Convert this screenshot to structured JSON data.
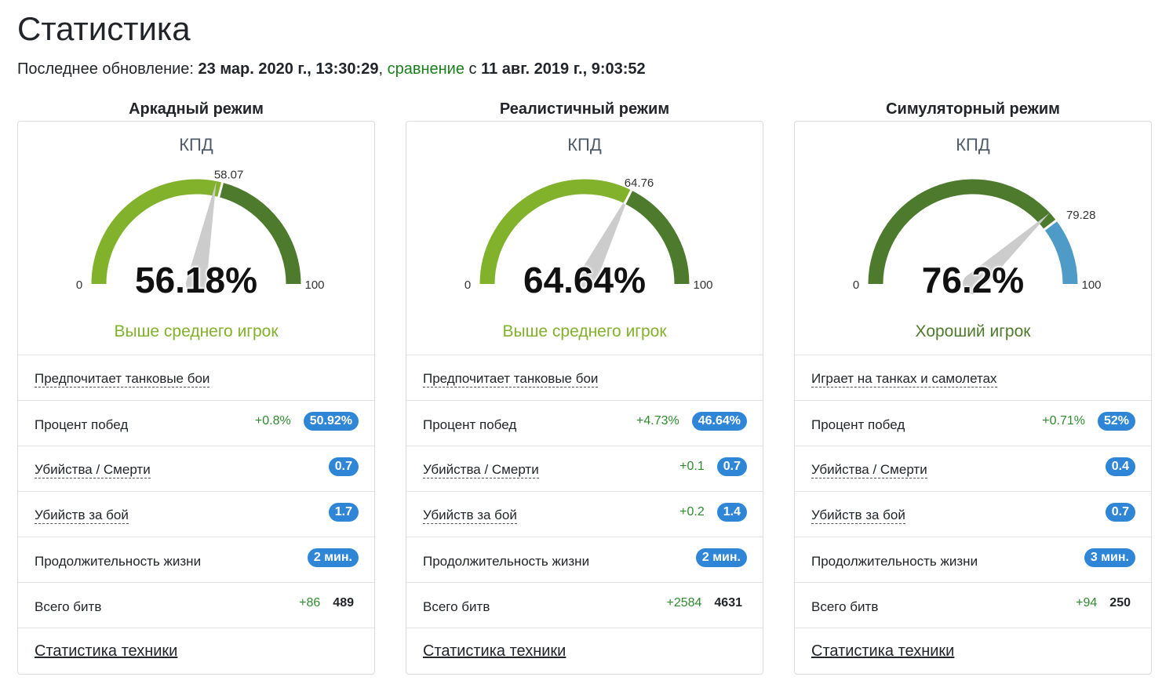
{
  "page_title": "Статистика",
  "update": {
    "label": "Последнее обновление:",
    "date": "23 мар. 2020 г., 13:30:29",
    "comma": ",",
    "compare_link": "сравнение",
    "compare_prefix": "с",
    "compare_date": "11 авг. 2019 г., 9:03:52"
  },
  "colors": {
    "light_green": "#82b12b",
    "dark_green": "#4e7a2d",
    "blue": "#4d9bc6",
    "needle": "#cccccc",
    "badge": "#2f86d6",
    "delta": "#2e8b2e"
  },
  "modes": [
    {
      "title": "Аркадный режим",
      "kpd_label": "КПД",
      "value": "56.18%",
      "compare_value": "58.07",
      "min_label": "0",
      "max_label": "100",
      "gauge": {
        "needle": 56.18,
        "marker": 58.07,
        "bands": [
          {
            "from": 0,
            "to": 58.07,
            "color": "#82b12b"
          },
          {
            "from": 58.07,
            "to": 100,
            "color": "#4e7a2d"
          }
        ]
      },
      "rating": "Выше среднего игрок",
      "rating_color": "#82b12b",
      "preference": "Предпочитает танковые бои",
      "rows": {
        "winrate": {
          "label": "Процент побед",
          "delta": "+0.8%",
          "value": "50.92%"
        },
        "kd": {
          "label": "Убийства / Смерти",
          "delta": "",
          "value": "0.7"
        },
        "kpb": {
          "label": "Убийств за бой",
          "delta": "",
          "value": "1.7"
        },
        "life": {
          "label": "Продолжительность жизни",
          "delta": "",
          "value": "2 мин."
        },
        "battles": {
          "label": "Всего битв",
          "delta": "+86",
          "value": "489"
        }
      },
      "footer_link": "Статистика техники"
    },
    {
      "title": "Реалистичный режим",
      "kpd_label": "КПД",
      "value": "64.64%",
      "compare_value": "64.76",
      "min_label": "0",
      "max_label": "100",
      "gauge": {
        "needle": 64.64,
        "marker": 64.76,
        "bands": [
          {
            "from": 0,
            "to": 64.76,
            "color": "#82b12b"
          },
          {
            "from": 64.76,
            "to": 100,
            "color": "#4e7a2d"
          }
        ]
      },
      "rating": "Выше среднего игрок",
      "rating_color": "#82b12b",
      "preference": "Предпочитает танковые бои",
      "rows": {
        "winrate": {
          "label": "Процент побед",
          "delta": "+4.73%",
          "value": "46.64%"
        },
        "kd": {
          "label": "Убийства / Смерти",
          "delta": "+0.1",
          "value": "0.7"
        },
        "kpb": {
          "label": "Убийств за бой",
          "delta": "+0.2",
          "value": "1.4"
        },
        "life": {
          "label": "Продолжительность жизни",
          "delta": "",
          "value": "2 мин."
        },
        "battles": {
          "label": "Всего битв",
          "delta": "+2584",
          "value": "4631"
        }
      },
      "footer_link": "Статистика техники"
    },
    {
      "title": "Симуляторный режим",
      "kpd_label": "КПД",
      "value": "76.2%",
      "compare_value": "79.28",
      "min_label": "0",
      "max_label": "100",
      "gauge": {
        "needle": 76.2,
        "marker": 79.28,
        "bands": [
          {
            "from": 0,
            "to": 79.28,
            "color": "#4e7a2d"
          },
          {
            "from": 79.28,
            "to": 100,
            "color": "#4d9bc6"
          }
        ]
      },
      "rating": "Хороший игрок",
      "rating_color": "#4e7a2d",
      "preference": "Играет на танках и самолетах",
      "rows": {
        "winrate": {
          "label": "Процент побед",
          "delta": "+0.71%",
          "value": "52%"
        },
        "kd": {
          "label": "Убийства / Смерти",
          "delta": "",
          "value": "0.4"
        },
        "kpb": {
          "label": "Убийств за бой",
          "delta": "",
          "value": "0.7"
        },
        "life": {
          "label": "Продолжительность жизни",
          "delta": "",
          "value": "3 мин."
        },
        "battles": {
          "label": "Всего битв",
          "delta": "+94",
          "value": "250"
        }
      },
      "footer_link": "Статистика техники"
    }
  ]
}
